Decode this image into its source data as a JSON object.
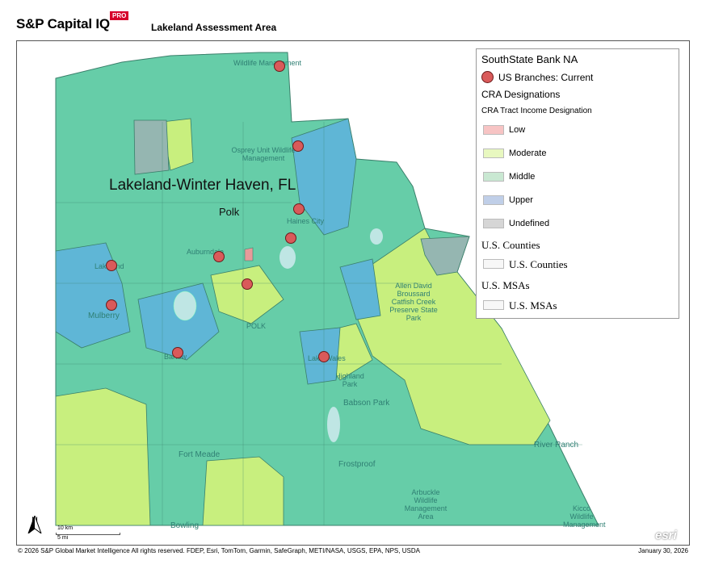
{
  "header": {
    "brand": "S&P Capital IQ",
    "brand_badge": "PRO",
    "title": "Lakeland Assessment Area"
  },
  "map": {
    "msa_label": "Lakeland-Winter Haven, FL",
    "county_label": "Polk",
    "places": [
      {
        "id": "wildlife-mgmt-north",
        "text": "Wildlife Management"
      },
      {
        "id": "osprey",
        "text": "Osprey Unit Wildlife Management"
      },
      {
        "id": "haines-city",
        "text": "Haines City"
      },
      {
        "id": "auburndale",
        "text": "Auburndale"
      },
      {
        "id": "lakeland",
        "text": "Lakeland"
      },
      {
        "id": "mulberry",
        "text": "Mulberry"
      },
      {
        "id": "bartow",
        "text": "Bartow"
      },
      {
        "id": "lake-wales",
        "text": "Lake Wales"
      },
      {
        "id": "highland-park",
        "text": "Highland Park"
      },
      {
        "id": "babson-park",
        "text": "Babson Park"
      },
      {
        "id": "allen-broussard",
        "text": "Allen David Broussard Catfish Creek Preserve State Park"
      },
      {
        "id": "fort-meade",
        "text": "Fort Meade"
      },
      {
        "id": "frostproof",
        "text": "Frostproof"
      },
      {
        "id": "river-ranch",
        "text": "River Ranch"
      },
      {
        "id": "arbuckle",
        "text": "Arbuckle Wildlife Management Area"
      },
      {
        "id": "kicco",
        "text": "Kicco Wildlife Management"
      },
      {
        "id": "bowling-green",
        "text": "Bowling"
      },
      {
        "id": "polk-city",
        "text": "POLK"
      }
    ],
    "branch_count": 10,
    "scale_km": "10 km",
    "scale_mi": "5 mi",
    "north": "N",
    "esri": "esri"
  },
  "legend": {
    "title": "SouthState Bank NA",
    "branches_label": "US Branches: Current",
    "cra_heading": "CRA Designations",
    "cra_sub": "CRA Tract Income Designation",
    "income_items": [
      {
        "label": "Low",
        "color": "#f7c4c4"
      },
      {
        "label": "Moderate",
        "color": "#e8f8c0"
      },
      {
        "label": "Middle",
        "color": "#c9e8d2"
      },
      {
        "label": "Upper",
        "color": "#c0cfe8"
      },
      {
        "label": "Undefined",
        "color": "#d6d6d6"
      }
    ],
    "counties_heading": "U.S. Counties",
    "counties_item": "U.S. Counties",
    "msas_heading": "U.S. MSAs",
    "msas_item": "U.S. MSAs"
  },
  "colors": {
    "middle_fill": "#66cda8",
    "moderate_fill": "#c8ef7e",
    "upper_fill": "#5fb6d6",
    "undefined_fill": "#95b6b1",
    "low_fill": "#e89a9a",
    "water": "#bfe6e4",
    "branch": "#d95a5a"
  },
  "footer": {
    "copyright": "© 2026 S&P Global Market Intelligence All rights reserved. FDEP, Esri, TomTom, Garmin, SafeGraph, METI/NASA, USGS, EPA, NPS, USDA",
    "date": "January 30, 2026"
  }
}
